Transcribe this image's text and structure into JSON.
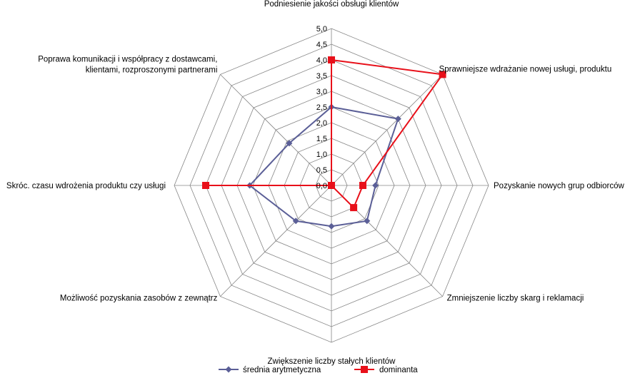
{
  "chart_data": {
    "type": "radar",
    "categories": [
      "Podniesienie jakości obsługi klientów",
      "Sprawniejsze wdrażanie nowej usługi, produktu",
      "Pozyskanie nowych grup odbiorców",
      "Zmniejszenie liczby skarg i reklamacji",
      "Zwiększenie liczby stałych klientów",
      "Możliwość pozyskania zasobów z zewnątrz",
      "Skróc. czasu wdrożenia produktu czy usługi",
      "Poprawa komunikacji i współpracy z dostawcami, klientami, rozproszonymi partnerami"
    ],
    "category_lines": [
      [
        "Podniesienie jakości obsługi klientów"
      ],
      [
        "Sprawniejsze wdrażanie nowej usługi, produktu"
      ],
      [
        "Pozyskanie nowych grup odbiorców"
      ],
      [
        "Zmniejszenie liczby skarg i reklamacji"
      ],
      [
        "Zwiększenie liczby stałych klientów"
      ],
      [
        "Możliwość pozyskania zasobów z zewnątrz"
      ],
      [
        "Skróc. czasu wdrożenia produktu czy usługi"
      ],
      [
        "Poprawa komunikacji i współpracy z dostawcami,",
        "klientami, rozproszonymi partnerami"
      ]
    ],
    "series": [
      {
        "name": "średnia arytmetyczna",
        "color": "#5B5F97",
        "marker": "diamond",
        "values": [
          2.5,
          3.0,
          1.4,
          1.6,
          1.3,
          1.6,
          2.6,
          1.9
        ]
      },
      {
        "name": "dominanta",
        "color": "#E8101A",
        "marker": "square",
        "values": [
          4.0,
          5.0,
          1.0,
          1.0,
          0.0,
          0.0,
          4.0,
          0.0
        ]
      }
    ],
    "ylim": [
      0,
      5
    ],
    "ticks": [
      "0,0",
      "0,5",
      "1,0",
      "1,5",
      "2,0",
      "2,5",
      "3,0",
      "3,5",
      "4,0",
      "4,5",
      "5,0"
    ],
    "grid": true,
    "legend_position": "bottom"
  }
}
